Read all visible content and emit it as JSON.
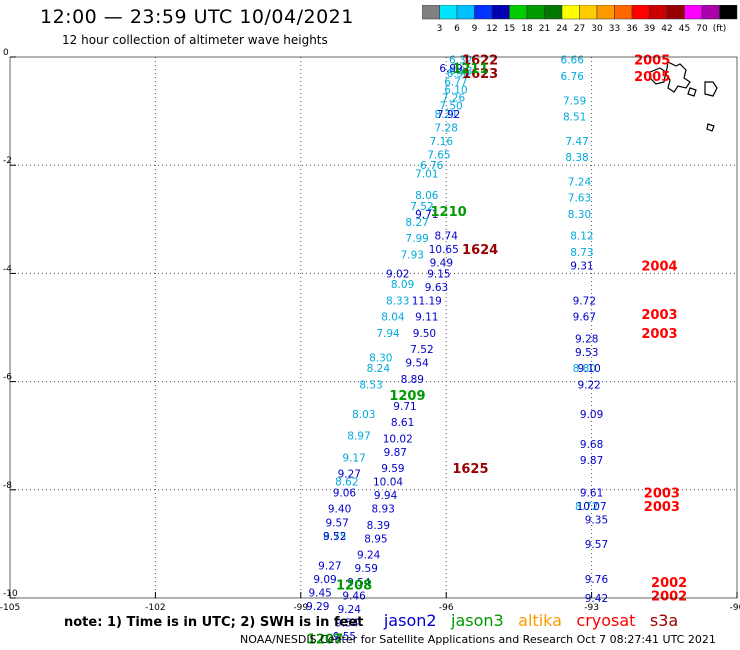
{
  "header": {
    "title": "12:00 — 23:59 UTC 10/04/2021",
    "subtitle": "12 hour collection of altimeter wave heights"
  },
  "color_scale": {
    "colors": [
      "#808080",
      "#00e5ff",
      "#00bfff",
      "#0033ff",
      "#0000b3",
      "#00cc00",
      "#009900",
      "#007700",
      "#ffff00",
      "#ffcc00",
      "#ff9900",
      "#ff6600",
      "#ff0000",
      "#cc0000",
      "#990000",
      "#ff00ff",
      "#aa00aa",
      "#000000"
    ],
    "labels": [
      "3",
      "6",
      "9",
      "12",
      "15",
      "18",
      "21",
      "24",
      "27",
      "30",
      "33",
      "36",
      "39",
      "42",
      "45",
      "70",
      "(ft)"
    ]
  },
  "legend": {
    "note": "note: 1) Time is in UTC; 2) SWH is in feet",
    "items": [
      {
        "label": "jason2",
        "color": "#0000cc"
      },
      {
        "label": "jason3",
        "color": "#009900"
      },
      {
        "label": "altika",
        "color": "#ff9900"
      },
      {
        "label": "cryosat",
        "color": "#ff0000"
      },
      {
        "label": "s3a",
        "color": "#990000"
      }
    ]
  },
  "credit": "NOAA/NESDIS Center for Satellite Applications and Research   Oct  7 08:27:41 UTC 2021",
  "chart_data": {
    "type": "scatter",
    "title": "",
    "xlabel": "",
    "ylabel": "",
    "xlim": [
      -105,
      -90
    ],
    "ylim": [
      -10,
      0
    ],
    "x_ticks": [
      -105,
      -102,
      -99,
      -96,
      -93,
      -90
    ],
    "y_ticks": [
      0,
      -2,
      -4,
      -6,
      -8,
      -10
    ],
    "x_tick_labels": [
      "-105",
      "-102",
      "-99",
      "-96",
      "-93",
      "-90"
    ],
    "y_tick_labels": [
      "0",
      "-2",
      "-4",
      "-6",
      "-8",
      "-10"
    ],
    "grid": true,
    "series": [
      {
        "name": "jason2",
        "color": "#00aadd",
        "points": [
          {
            "x": -95.7,
            "y": -0.05,
            "v": "6.32"
          },
          {
            "x": -95.7,
            "y": -0.25,
            "v": "6.38"
          },
          {
            "x": -95.75,
            "y": -0.3,
            "v": "6.90"
          },
          {
            "x": -95.8,
            "y": -0.45,
            "v": "6.77"
          },
          {
            "x": -95.8,
            "y": -0.6,
            "v": "6.10"
          },
          {
            "x": -95.85,
            "y": -0.75,
            "v": "7.26"
          },
          {
            "x": -95.9,
            "y": -0.9,
            "v": "7.50"
          },
          {
            "x": -96.0,
            "y": -1.05,
            "v": "8.21"
          },
          {
            "x": -96.0,
            "y": -1.3,
            "v": "7.28"
          },
          {
            "x": -96.1,
            "y": -1.55,
            "v": "7.16"
          },
          {
            "x": -96.15,
            "y": -1.8,
            "v": "7.65"
          },
          {
            "x": -96.3,
            "y": -2.0,
            "v": "6.76"
          },
          {
            "x": -96.4,
            "y": -2.15,
            "v": "7.01"
          },
          {
            "x": -96.4,
            "y": -2.55,
            "v": "8.06"
          },
          {
            "x": -96.5,
            "y": -2.75,
            "v": "7.52"
          },
          {
            "x": -96.6,
            "y": -3.05,
            "v": "8.27"
          },
          {
            "x": -96.6,
            "y": -3.35,
            "v": "7.99"
          },
          {
            "x": -96.7,
            "y": -3.65,
            "v": "7.93"
          },
          {
            "x": -96.9,
            "y": -4.2,
            "v": "8.09"
          },
          {
            "x": -97.0,
            "y": -4.5,
            "v": "8.33"
          },
          {
            "x": -97.1,
            "y": -4.8,
            "v": "8.04"
          },
          {
            "x": -97.2,
            "y": -5.1,
            "v": "7.94"
          },
          {
            "x": -97.35,
            "y": -5.55,
            "v": "8.30"
          },
          {
            "x": -97.4,
            "y": -5.75,
            "v": "8.24"
          },
          {
            "x": -97.55,
            "y": -6.05,
            "v": "8.53"
          },
          {
            "x": -97.7,
            "y": -6.6,
            "v": "8.03"
          },
          {
            "x": -97.8,
            "y": -7.0,
            "v": "8.97"
          },
          {
            "x": -97.9,
            "y": -7.4,
            "v": "9.17"
          },
          {
            "x": -98.05,
            "y": -7.85,
            "v": "8.62"
          },
          {
            "x": -98.3,
            "y": -8.85,
            "v": "8.75"
          },
          {
            "x": -93.4,
            "y": -0.05,
            "v": "6.66"
          },
          {
            "x": -93.4,
            "y": -0.35,
            "v": "6.76"
          },
          {
            "x": -93.35,
            "y": -0.8,
            "v": "7.59"
          },
          {
            "x": -93.35,
            "y": -1.1,
            "v": "8.51"
          },
          {
            "x": -93.3,
            "y": -1.55,
            "v": "7.47"
          },
          {
            "x": -93.3,
            "y": -1.85,
            "v": "8.38"
          },
          {
            "x": -93.25,
            "y": -2.3,
            "v": "7.24"
          },
          {
            "x": -93.25,
            "y": -2.6,
            "v": "7.63"
          },
          {
            "x": -93.25,
            "y": -2.9,
            "v": "8.30"
          },
          {
            "x": -93.2,
            "y": -3.3,
            "v": "8.12"
          },
          {
            "x": -93.2,
            "y": -3.6,
            "v": "8.73"
          },
          {
            "x": -93.15,
            "y": -5.75,
            "v": "8.80"
          },
          {
            "x": -93.1,
            "y": -8.3,
            "v": "8.72"
          }
        ]
      },
      {
        "name": "jason2b",
        "color": "#0000cc",
        "points": [
          {
            "x": -95.9,
            "y": -0.2,
            "v": "6.99"
          },
          {
            "x": -95.95,
            "y": -1.05,
            "v": "7.92"
          },
          {
            "x": -96.0,
            "y": -3.3,
            "v": "8.74"
          },
          {
            "x": -96.05,
            "y": -3.55,
            "v": "10.65"
          },
          {
            "x": -96.1,
            "y": -3.8,
            "v": "9.49"
          },
          {
            "x": -96.15,
            "y": -4.0,
            "v": "9.15"
          },
          {
            "x": -96.2,
            "y": -4.25,
            "v": "9.63"
          },
          {
            "x": -96.4,
            "y": -4.5,
            "v": "11.19"
          },
          {
            "x": -96.4,
            "y": -4.8,
            "v": "9.11"
          },
          {
            "x": -96.45,
            "y": -5.1,
            "v": "9.50"
          },
          {
            "x": -96.5,
            "y": -5.4,
            "v": "7.52"
          },
          {
            "x": -96.6,
            "y": -5.65,
            "v": "9.54"
          },
          {
            "x": -96.7,
            "y": -5.95,
            "v": "8.89"
          },
          {
            "x": -96.85,
            "y": -6.45,
            "v": "9.71"
          },
          {
            "x": -96.9,
            "y": -6.75,
            "v": "8.61"
          },
          {
            "x": -97.0,
            "y": -7.05,
            "v": "10.02"
          },
          {
            "x": -97.05,
            "y": -7.3,
            "v": "9.87"
          },
          {
            "x": -97.1,
            "y": -7.6,
            "v": "9.59"
          },
          {
            "x": -97.2,
            "y": -7.85,
            "v": "10.04"
          },
          {
            "x": -97.25,
            "y": -8.1,
            "v": "9.94"
          },
          {
            "x": -97.3,
            "y": -8.35,
            "v": "8.93"
          },
          {
            "x": -97.4,
            "y": -8.65,
            "v": "8.39"
          },
          {
            "x": -97.45,
            "y": -8.9,
            "v": "8.95"
          },
          {
            "x": -97.6,
            "y": -9.2,
            "v": "9.24"
          },
          {
            "x": -97.65,
            "y": -9.45,
            "v": "9.59"
          },
          {
            "x": -97.8,
            "y": -9.7,
            "v": "9.54"
          },
          {
            "x": -97.9,
            "y": -9.95,
            "v": "9.46"
          },
          {
            "x": -98.0,
            "y": -10.2,
            "v": "9.24"
          },
          {
            "x": -98.05,
            "y": -10.45,
            "v": "9.54"
          },
          {
            "x": -98.1,
            "y": -10.7,
            "v": "9.55"
          },
          {
            "x": -97.0,
            "y": -4.0,
            "v": "9.02"
          },
          {
            "x": -98.0,
            "y": -7.7,
            "v": "9.27"
          },
          {
            "x": -98.1,
            "y": -8.05,
            "v": "9.06"
          },
          {
            "x": -98.2,
            "y": -8.35,
            "v": "9.40"
          },
          {
            "x": -98.25,
            "y": -8.6,
            "v": "9.57"
          },
          {
            "x": -98.3,
            "y": -8.85,
            "v": "9.52"
          },
          {
            "x": -98.4,
            "y": -9.4,
            "v": "9.27"
          },
          {
            "x": -98.5,
            "y": -9.65,
            "v": "9.09"
          },
          {
            "x": -98.6,
            "y": -9.9,
            "v": "9.45"
          },
          {
            "x": -98.65,
            "y": -10.15,
            "v": "9.29"
          },
          {
            "x": -96.4,
            "y": -2.9,
            "v": "9.71"
          },
          {
            "x": -93.2,
            "y": -3.85,
            "v": "9.31"
          },
          {
            "x": -93.15,
            "y": -4.5,
            "v": "9.72"
          },
          {
            "x": -93.15,
            "y": -4.8,
            "v": "9.67"
          },
          {
            "x": -93.1,
            "y": -5.2,
            "v": "9.28"
          },
          {
            "x": -93.1,
            "y": -5.45,
            "v": "9.53"
          },
          {
            "x": -93.05,
            "y": -5.75,
            "v": "9.10"
          },
          {
            "x": -93.05,
            "y": -6.05,
            "v": "9.22"
          },
          {
            "x": -93.0,
            "y": -6.6,
            "v": "9.09"
          },
          {
            "x": -93.0,
            "y": -7.15,
            "v": "9.68"
          },
          {
            "x": -93.0,
            "y": -7.45,
            "v": "9.87"
          },
          {
            "x": -93.0,
            "y": -8.05,
            "v": "9.61"
          },
          {
            "x": -93.0,
            "y": -8.3,
            "v": "10.07"
          },
          {
            "x": -92.9,
            "y": -8.55,
            "v": "9.35"
          },
          {
            "x": -92.9,
            "y": -9.0,
            "v": "9.57"
          },
          {
            "x": -92.9,
            "y": -9.65,
            "v": "9.76"
          },
          {
            "x": -92.9,
            "y": -10.0,
            "v": "9.42"
          }
        ]
      }
    ],
    "time_labels": [
      {
        "x": -95.3,
        "y": -0.05,
        "v": "1622",
        "color": "#990000"
      },
      {
        "x": -95.3,
        "y": -0.3,
        "v": "1623",
        "color": "#990000"
      },
      {
        "x": -95.5,
        "y": -0.2,
        "v": "1211",
        "color": "#009900"
      },
      {
        "x": -95.95,
        "y": -2.85,
        "v": "1210",
        "color": "#009900"
      },
      {
        "x": -95.3,
        "y": -3.55,
        "v": "1624",
        "color": "#990000"
      },
      {
        "x": -96.8,
        "y": -6.25,
        "v": "1209",
        "color": "#009900"
      },
      {
        "x": -95.5,
        "y": -7.6,
        "v": "1625",
        "color": "#990000"
      },
      {
        "x": -97.9,
        "y": -9.75,
        "v": "1208",
        "color": "#009900"
      },
      {
        "x": -98.5,
        "y": -10.75,
        "v": "1207",
        "color": "#009900"
      },
      {
        "x": -91.75,
        "y": -0.05,
        "v": "2005",
        "color": "#ff0000"
      },
      {
        "x": -91.75,
        "y": -0.35,
        "v": "2005",
        "color": "#ff0000"
      },
      {
        "x": -91.6,
        "y": -3.85,
        "v": "2004",
        "color": "#ff0000"
      },
      {
        "x": -91.6,
        "y": -4.75,
        "v": "2003",
        "color": "#ff0000"
      },
      {
        "x": -91.6,
        "y": -5.1,
        "v": "2003",
        "color": "#ff0000"
      },
      {
        "x": -91.55,
        "y": -8.05,
        "v": "2003",
        "color": "#ff0000"
      },
      {
        "x": -91.55,
        "y": -8.3,
        "v": "2003",
        "color": "#ff0000"
      },
      {
        "x": -91.4,
        "y": -9.7,
        "v": "2002",
        "color": "#ff0000"
      },
      {
        "x": -91.4,
        "y": -9.95,
        "v": "2002",
        "color": "#ff0000"
      }
    ]
  }
}
